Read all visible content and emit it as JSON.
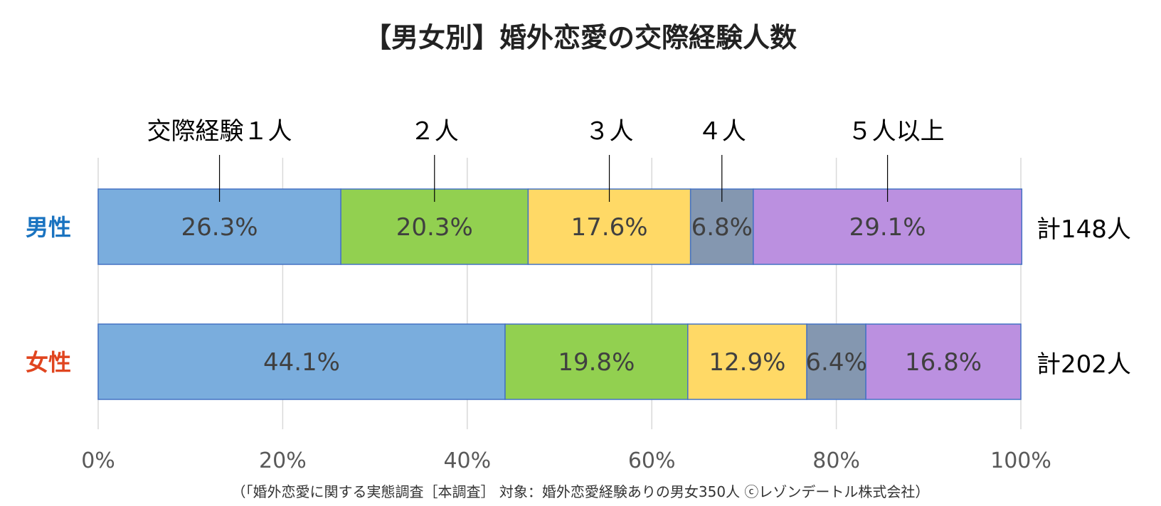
{
  "title": "【男女別】婚外恋愛の交際経験人数",
  "footnote": "（「婚外恋愛に関する実態調査［本調査］ 対象：婚外恋愛経験ありの男女350人 ⓒレゾンデートル株式会社）",
  "chart_data": {
    "type": "bar",
    "orientation": "horizontal",
    "stacked": "percent",
    "categories": [
      "男性",
      "女性"
    ],
    "category_colors": [
      "#1a73c0",
      "#e0451f"
    ],
    "totals": [
      "計148人",
      "計202人"
    ],
    "series": [
      {
        "name": "交際経験１人",
        "color": "#7aaddd",
        "values": [
          26.3,
          44.1
        ],
        "labels": [
          "26.3%",
          "44.1%"
        ]
      },
      {
        "name": "２人",
        "color": "#92d050",
        "values": [
          20.3,
          19.8
        ],
        "labels": [
          "20.3%",
          "19.8%"
        ]
      },
      {
        "name": "３人",
        "color": "#ffd966",
        "values": [
          17.6,
          12.9
        ],
        "labels": [
          "17.6%",
          "12.9%"
        ]
      },
      {
        "name": "４人",
        "color": "#8497b0",
        "values": [
          6.8,
          6.4
        ],
        "labels": [
          "6.8%",
          "6.4%"
        ]
      },
      {
        "name": "５人以上",
        "color": "#bb90e0",
        "values": [
          29.1,
          16.8
        ],
        "labels": [
          "29.1%",
          "16.8%"
        ]
      }
    ],
    "xlim": [
      0,
      100
    ],
    "xticks": [
      "0%",
      "20%",
      "40%",
      "60%",
      "80%",
      "100%"
    ],
    "grid": true,
    "legend": "top-callouts"
  }
}
